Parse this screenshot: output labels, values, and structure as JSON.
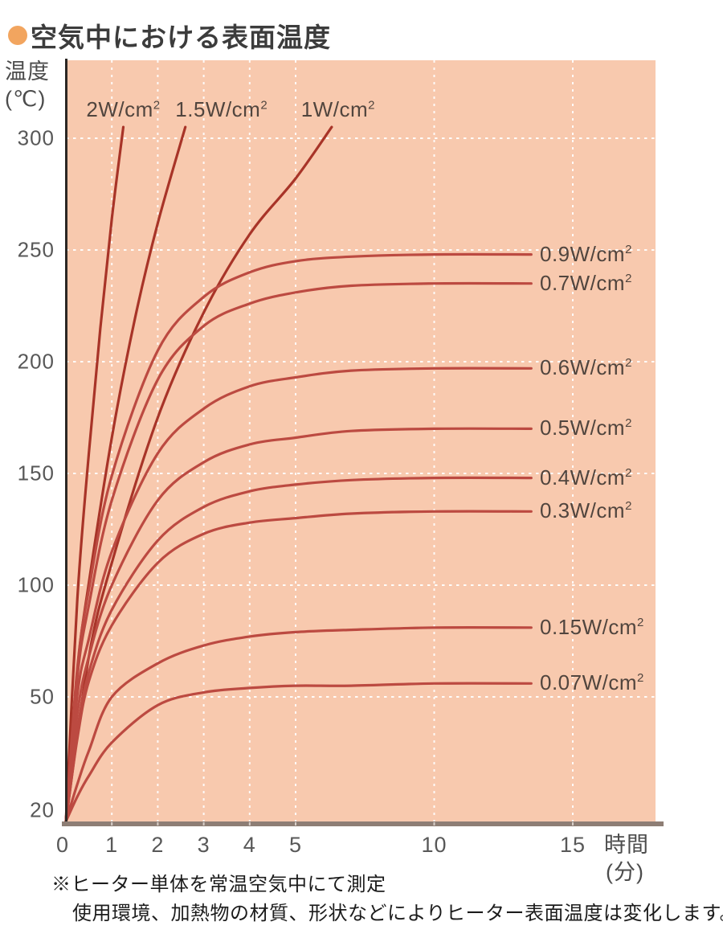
{
  "title": {
    "bullet_icon": "circle",
    "text": "空気中における表面温度"
  },
  "axes": {
    "y_title_line1": "温度",
    "y_title_line2": "(℃)",
    "x_title_line1": "時間",
    "x_title_line2": "(分)",
    "x_ticks": [
      "0",
      "1",
      "2",
      "3",
      "4",
      "5",
      "10",
      "15"
    ],
    "y_ticks": [
      "300",
      "250",
      "200",
      "150",
      "100",
      "50",
      "20"
    ]
  },
  "footnote": {
    "line1": "※ヒーター単体を常温空気中にて測定",
    "line2": "使用環境、加熱物の材質、形状などによりヒーター表面温度は変化します。"
  },
  "colors": {
    "plot_bg": "#f8c9ae",
    "grid": "#ffffff",
    "axis_line": "#2b2724",
    "axis_bar": "#8e7e75",
    "curve_steep": "#a83428",
    "curve_flat": "#bc4a41",
    "title_bullet": "#f2a55f",
    "text_dark": "#3c3c3c",
    "text_gray": "#585858"
  },
  "chart_data": {
    "type": "line",
    "title": "空気中における表面温度",
    "xlabel": "時間(分)",
    "ylabel": "温度(℃)",
    "xlim": [
      0,
      15
    ],
    "ylim": [
      20,
      330
    ],
    "grid": true,
    "axis_notes": "x axis compressed beyond 5 min; y axis stretched below 50°C; all curves start at ambient 20°C",
    "legend_position": "labels at curve ends",
    "series": [
      {
        "label": "2W/cm²",
        "label_pos": "top",
        "color": "#a83428",
        "points": [
          [
            0,
            20
          ],
          [
            0.25,
            94
          ],
          [
            0.5,
            159
          ],
          [
            0.75,
            215
          ],
          [
            1,
            264
          ],
          [
            1.25,
            305
          ]
        ]
      },
      {
        "label": "1.5W/cm²",
        "label_pos": "top",
        "color": "#a83428",
        "points": [
          [
            0,
            20
          ],
          [
            0.25,
            62
          ],
          [
            0.5,
            101
          ],
          [
            1,
            166
          ],
          [
            1.5,
            219
          ],
          [
            2,
            262
          ],
          [
            2.6,
            305
          ]
        ]
      },
      {
        "label": "1W/cm²",
        "label_pos": "top",
        "color": "#a83428",
        "points": [
          [
            0,
            20
          ],
          [
            0.5,
            68
          ],
          [
            1,
            110
          ],
          [
            2,
            175
          ],
          [
            3,
            222
          ],
          [
            4,
            257
          ],
          [
            5,
            282
          ],
          [
            6.3,
            305
          ]
        ]
      },
      {
        "label": "0.9W/cm²",
        "label_pos": "right",
        "color": "#bc4a41",
        "points": [
          [
            0,
            20
          ],
          [
            0.25,
            63
          ],
          [
            0.5,
            98
          ],
          [
            1,
            149
          ],
          [
            2,
            205
          ],
          [
            3,
            229
          ],
          [
            4,
            240
          ],
          [
            5,
            245
          ],
          [
            7,
            247
          ],
          [
            10,
            248
          ],
          [
            13.5,
            248
          ]
        ]
      },
      {
        "label": "0.7W/cm²",
        "label_pos": "right",
        "color": "#bc4a41",
        "points": [
          [
            0,
            20
          ],
          [
            0.25,
            59
          ],
          [
            0.5,
            91
          ],
          [
            1,
            138
          ],
          [
            2,
            192
          ],
          [
            3,
            216
          ],
          [
            4,
            226
          ],
          [
            5,
            231
          ],
          [
            7,
            234
          ],
          [
            10,
            235
          ],
          [
            13.5,
            235
          ]
        ]
      },
      {
        "label": "0.6W/cm²",
        "label_pos": "right",
        "color": "#bc4a41",
        "points": [
          [
            0,
            20
          ],
          [
            0.25,
            51
          ],
          [
            0.5,
            76
          ],
          [
            1,
            115
          ],
          [
            2,
            159
          ],
          [
            3,
            179
          ],
          [
            4,
            189
          ],
          [
            5,
            193
          ],
          [
            7,
            196
          ],
          [
            10,
            197
          ],
          [
            13.5,
            197
          ]
        ]
      },
      {
        "label": "0.5W/cm²",
        "label_pos": "right",
        "color": "#bc4a41",
        "points": [
          [
            0,
            20
          ],
          [
            0.25,
            46
          ],
          [
            0.5,
            68
          ],
          [
            1,
            100
          ],
          [
            2,
            138
          ],
          [
            3,
            155
          ],
          [
            4,
            163
          ],
          [
            5,
            166
          ],
          [
            7,
            169
          ],
          [
            10,
            170
          ],
          [
            13.5,
            170
          ]
        ]
      },
      {
        "label": "0.4W/cm²",
        "label_pos": "right",
        "color": "#bc4a41",
        "points": [
          [
            0,
            20
          ],
          [
            0.25,
            42
          ],
          [
            0.5,
            61
          ],
          [
            1,
            89
          ],
          [
            2,
            120
          ],
          [
            3,
            135
          ],
          [
            4,
            142
          ],
          [
            5,
            145
          ],
          [
            7,
            147
          ],
          [
            10,
            148
          ],
          [
            13.5,
            148
          ]
        ]
      },
      {
        "label": "0.3W/cm²",
        "label_pos": "right",
        "color": "#bc4a41",
        "points": [
          [
            0,
            20
          ],
          [
            0.25,
            40
          ],
          [
            0.5,
            57
          ],
          [
            1,
            82
          ],
          [
            2,
            110
          ],
          [
            3,
            123
          ],
          [
            4,
            128
          ],
          [
            5,
            130
          ],
          [
            7,
            132
          ],
          [
            10,
            133
          ],
          [
            13.5,
            133
          ]
        ]
      },
      {
        "label": "0.15W/cm²",
        "label_pos": "right",
        "color": "#bc4a41",
        "points": [
          [
            0,
            20
          ],
          [
            0.25,
            29
          ],
          [
            0.5,
            37
          ],
          [
            1,
            50
          ],
          [
            2,
            65
          ],
          [
            3,
            73
          ],
          [
            4,
            77
          ],
          [
            5,
            79
          ],
          [
            7,
            80
          ],
          [
            10,
            81
          ],
          [
            13.5,
            81
          ]
        ]
      },
      {
        "label": "0.07W/cm²",
        "label_pos": "right",
        "color": "#bc4a41",
        "points": [
          [
            0,
            20
          ],
          [
            0.25,
            26
          ],
          [
            0.5,
            31
          ],
          [
            1,
            39
          ],
          [
            2,
            48
          ],
          [
            3,
            52
          ],
          [
            4,
            54
          ],
          [
            5,
            55
          ],
          [
            7,
            55
          ],
          [
            10,
            56
          ],
          [
            13.5,
            56
          ]
        ]
      }
    ]
  }
}
